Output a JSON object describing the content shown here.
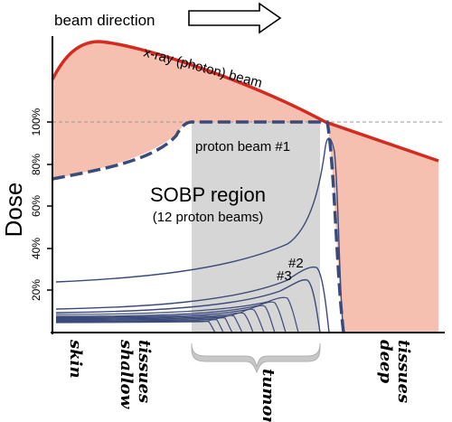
{
  "header": {
    "beam_direction_label": "beam direction"
  },
  "axis": {
    "y_label": "Dose",
    "y_ticks": [
      "100%",
      "80%",
      "60%",
      "40%",
      "20%"
    ],
    "x_labels": {
      "skin": "skin",
      "shallow_line1": "shallow",
      "shallow_line2": "tissues",
      "tumor": "tumor",
      "deep_line1": "deep",
      "deep_line2": "tissues"
    }
  },
  "curves": {
    "xray_label": "x-ray (photon) beam",
    "proton1_label": "proton beam #1",
    "proton2_label": "#2",
    "proton3_label": "#3"
  },
  "sobp": {
    "title": "SOBP region",
    "subtitle": "(12 proton beams)"
  },
  "colors": {
    "xray_curve": "#d42a20",
    "xray_fill": "#f5c0b0",
    "proton_curve": "#3c4a7a",
    "sobp_dashed": "#3c4a7a",
    "tumor_region": "#d6d6d6",
    "axis": "#000000"
  }
}
